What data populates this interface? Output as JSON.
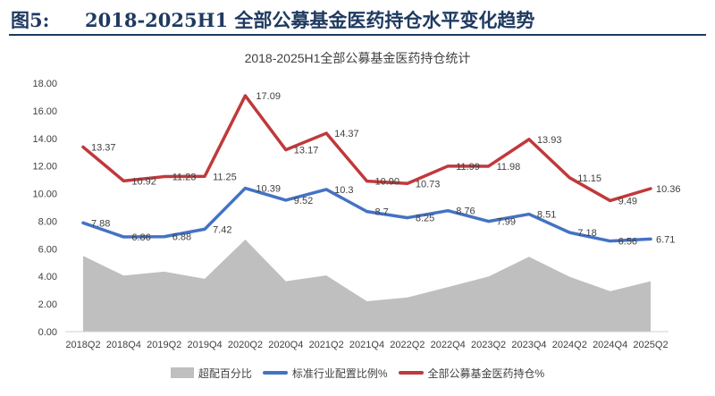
{
  "figure": {
    "label": "图5:",
    "title": "2018-2025H1 全部公募基金医药持仓水平变化趋势"
  },
  "chart_data": {
    "type": "line",
    "title": "2018-2025H1全部公募基金医药持仓统计",
    "categories": [
      "2018Q2",
      "2018Q4",
      "2019Q2",
      "2019Q4",
      "2020Q2",
      "2020Q4",
      "2021Q2",
      "2021Q4",
      "2022Q2",
      "2022Q4",
      "2023Q2",
      "2023Q4",
      "2024Q2",
      "2024Q4",
      "2025Q2"
    ],
    "ylim": [
      0,
      18
    ],
    "yticks": [
      "0.00",
      "2.00",
      "4.00",
      "6.00",
      "8.00",
      "10.00",
      "12.00",
      "14.00",
      "16.00",
      "18.00"
    ],
    "grid": false,
    "legend_position": "bottom",
    "series": [
      {
        "name": "超配百分比",
        "type": "area",
        "color": "#bfbfbf",
        "values": [
          5.49,
          4.06,
          4.35,
          3.83,
          6.67,
          3.65,
          4.07,
          2.2,
          2.48,
          3.23,
          3.99,
          5.42,
          3.97,
          2.93,
          3.65
        ],
        "labels": []
      },
      {
        "name": "标准行业配置比例%",
        "type": "line",
        "color": "#4472c4",
        "values": [
          7.88,
          6.86,
          6.88,
          7.42,
          10.39,
          9.52,
          10.3,
          8.7,
          8.25,
          8.76,
          7.99,
          8.51,
          7.18,
          6.56,
          6.71
        ],
        "labels": [
          "7.88",
          "6.86",
          "6.88",
          "7.42",
          "10.39",
          "9.52",
          "10.3",
          "8.7",
          "8.25",
          "8.76",
          "7.99",
          "8.51",
          "7.18",
          "6.56",
          "6.71"
        ]
      },
      {
        "name": "全部公募基金医药持仓%",
        "type": "line",
        "color": "#c0393b",
        "values": [
          13.37,
          10.92,
          11.23,
          11.25,
          17.09,
          13.17,
          14.37,
          10.9,
          10.73,
          11.99,
          11.98,
          13.93,
          11.15,
          9.49,
          10.36
        ],
        "labels": [
          "13.37",
          "10.92",
          "11.23",
          "11.25",
          "17.09",
          "13.17",
          "14.37",
          "10.90",
          "10.73",
          "11.99",
          "11.98",
          "13.93",
          "11.15",
          "9.49",
          "10.36"
        ]
      }
    ]
  }
}
